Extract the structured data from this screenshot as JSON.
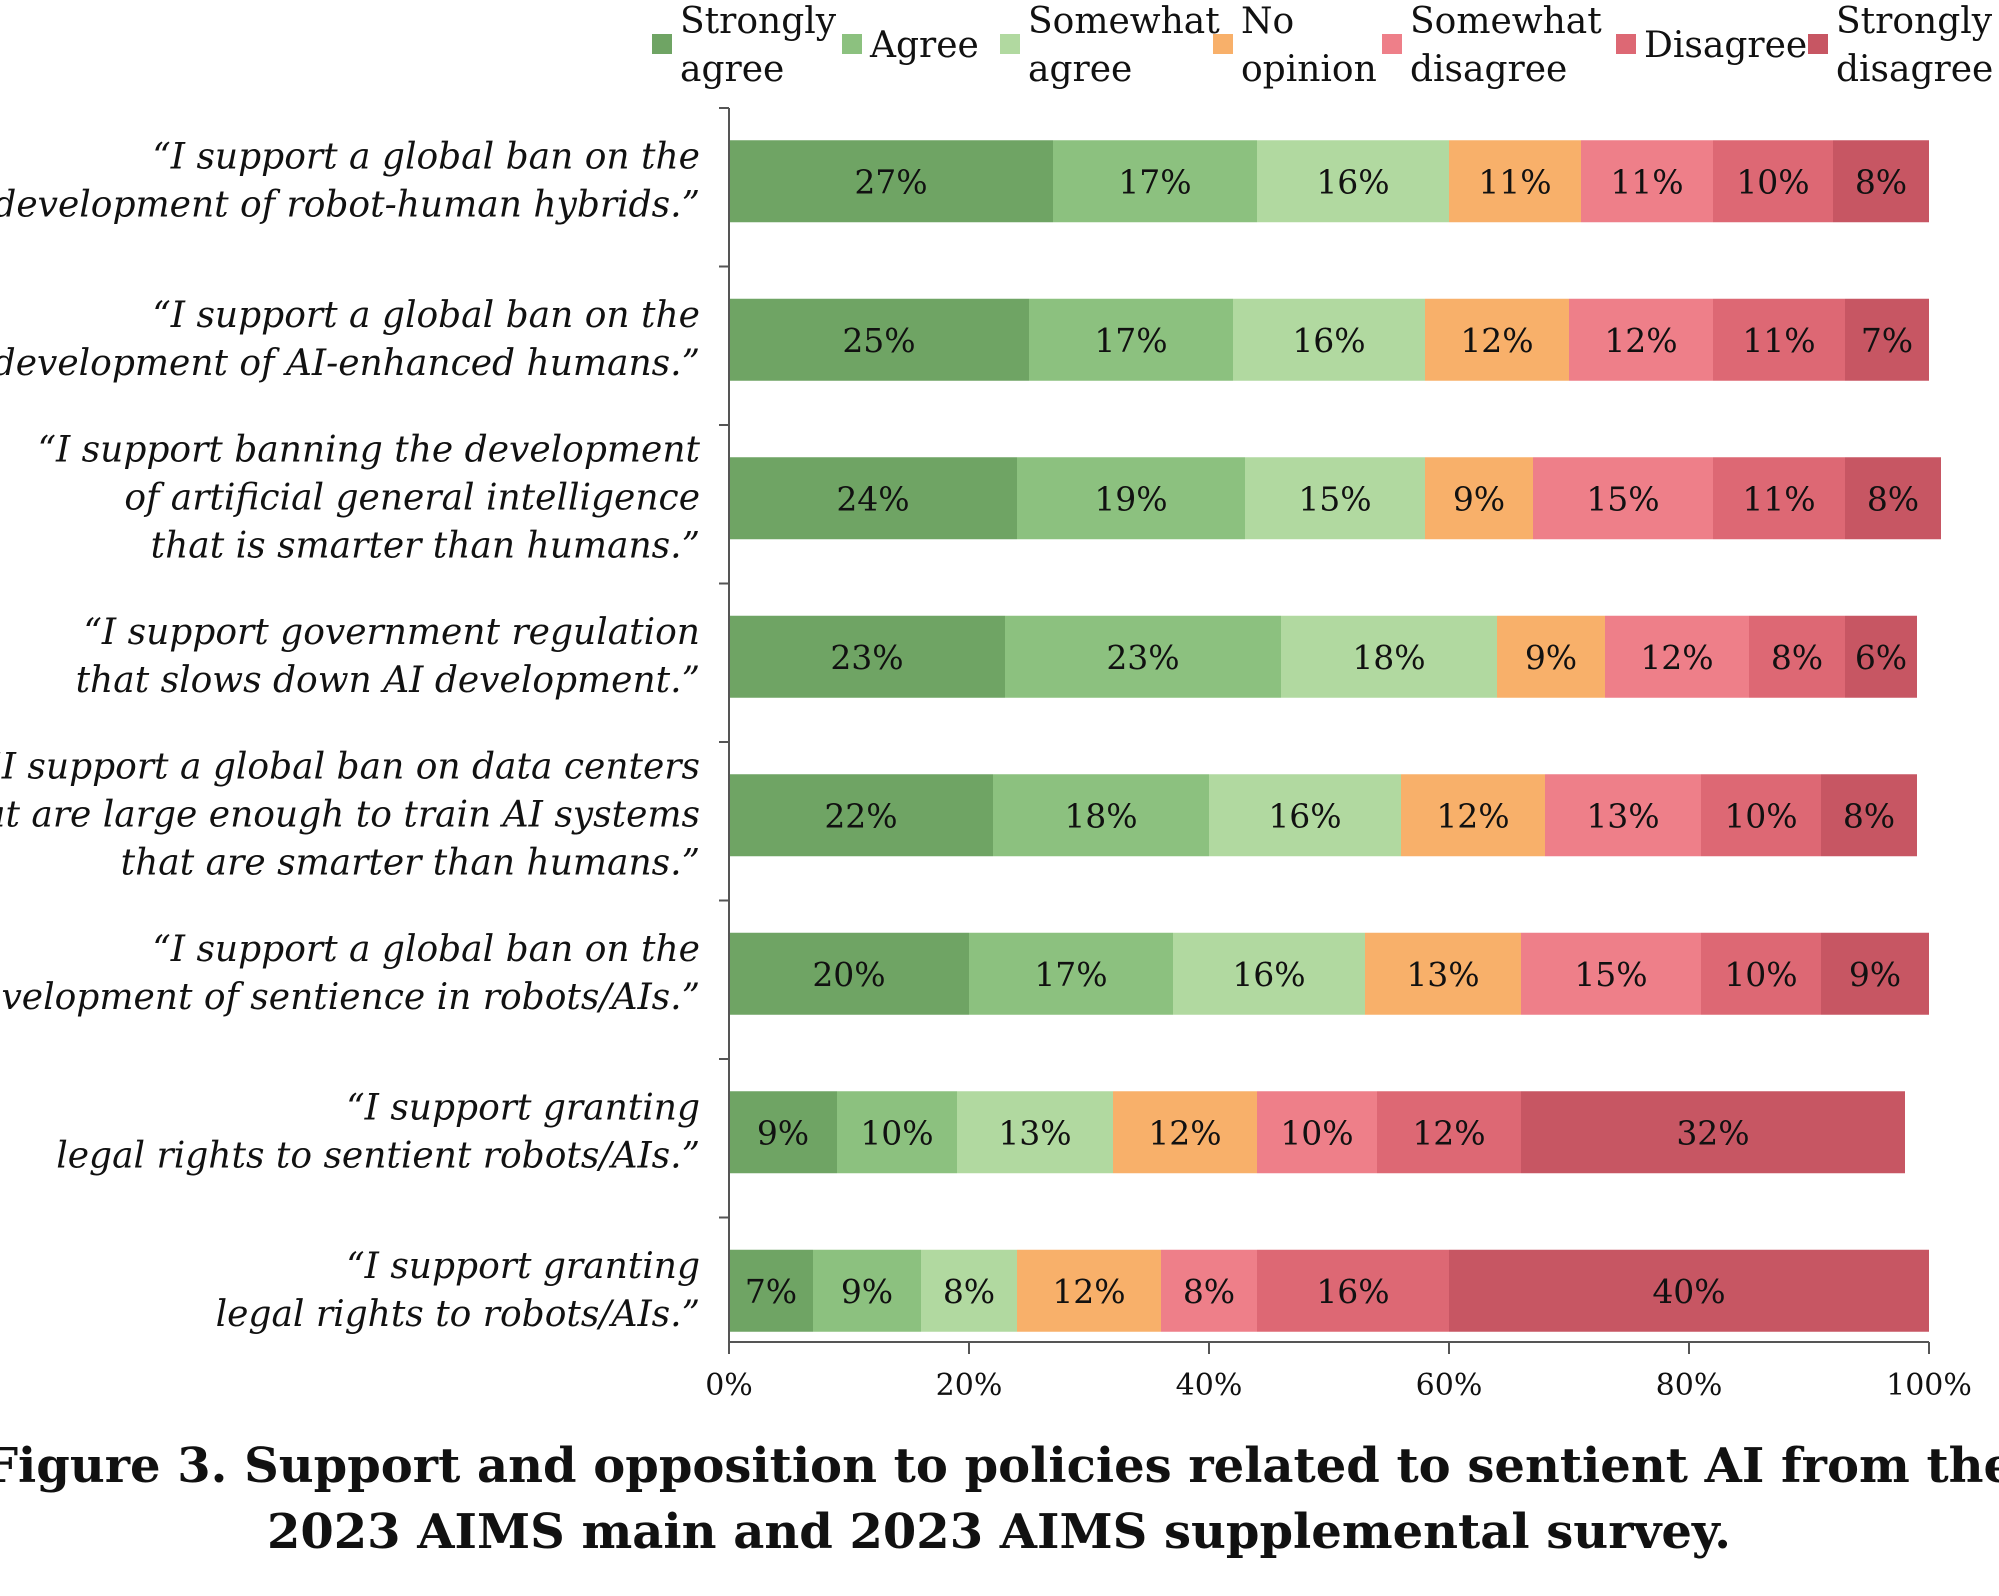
{
  "chart_data": {
    "type": "bar",
    "orientation": "horizontal",
    "stacked": true,
    "caption_lines": [
      "Figure 3. Support and opposition to policies related to sentient AI from the",
      "2023 AIMS main and 2023 AIMS supplemental survey."
    ],
    "categories": [
      [
        "“I support a global ban on the",
        "development of robot-human hybrids.”"
      ],
      [
        "“I support a global ban on the",
        "development of AI-enhanced humans.”"
      ],
      [
        "“I support banning the development",
        "of artificial general intelligence",
        "that is smarter than humans.”"
      ],
      [
        "“I support government regulation",
        "that slows down AI development.”"
      ],
      [
        "“I support a global ban on data centers",
        "that are large enough to train AI systems",
        "that are smarter than humans.”"
      ],
      [
        "“I support a global ban on the",
        "development of sentience in robots/AIs.”"
      ],
      [
        "“I support granting",
        "legal rights to sentient robots/AIs.”"
      ],
      [
        "“I support granting",
        "legal rights to robots/AIs.”"
      ]
    ],
    "series": [
      {
        "name": "Strongly agree",
        "legend_lines": [
          "Strongly",
          "agree"
        ],
        "color": "#6fa464",
        "values": [
          27,
          25,
          24,
          23,
          22,
          20,
          9,
          7
        ],
        "labels": [
          "27%",
          "25%",
          "24%",
          "23%",
          "22%",
          "20%",
          "9%",
          "7%"
        ]
      },
      {
        "name": "Agree",
        "legend_lines": [
          "Agree"
        ],
        "color": "#8cc17f",
        "values": [
          17,
          17,
          19,
          23,
          18,
          17,
          10,
          9
        ],
        "labels": [
          "17%",
          "17%",
          "19%",
          "23%",
          "18%",
          "17%",
          "10%",
          "9%"
        ]
      },
      {
        "name": "Somewhat agree",
        "legend_lines": [
          "Somewhat",
          "agree"
        ],
        "color": "#b1d9a0",
        "values": [
          16,
          16,
          15,
          18,
          16,
          16,
          13,
          8
        ],
        "labels": [
          "16%",
          "16%",
          "15%",
          "18%",
          "16%",
          "16%",
          "13%",
          "8%"
        ]
      },
      {
        "name": "No opinion",
        "legend_lines": [
          "No",
          "opinion"
        ],
        "color": "#f8b06a",
        "values": [
          11,
          12,
          9,
          9,
          12,
          13,
          12,
          12
        ],
        "labels": [
          "11%",
          "12%",
          "9%",
          "9%",
          "12%",
          "13%",
          "12%",
          "12%"
        ]
      },
      {
        "name": "Somewhat disagree",
        "legend_lines": [
          "Somewhat",
          "disagree"
        ],
        "color": "#ee7f89",
        "values": [
          11,
          12,
          15,
          12,
          13,
          15,
          10,
          8
        ],
        "labels": [
          "11%",
          "12%",
          "15%",
          "12%",
          "13%",
          "15%",
          "10%",
          "8%"
        ]
      },
      {
        "name": "Disagree",
        "legend_lines": [
          "Disagree"
        ],
        "color": "#dd6874",
        "values": [
          10,
          11,
          11,
          8,
          10,
          10,
          12,
          16
        ],
        "labels": [
          "10%",
          "11%",
          "11%",
          "8%",
          "10%",
          "10%",
          "12%",
          "16%"
        ]
      },
      {
        "name": "Strongly disagree",
        "legend_lines": [
          "Strongly",
          "disagree"
        ],
        "color": "#c75663",
        "values": [
          8,
          7,
          8,
          6,
          8,
          9,
          32,
          40
        ],
        "labels": [
          "8%",
          "7%",
          "8%",
          "6%",
          "8%",
          "9%",
          "32%",
          "40%"
        ]
      }
    ],
    "xlim": [
      0,
      100
    ],
    "xticks": [
      0,
      20,
      40,
      60,
      80,
      100
    ],
    "xtick_labels": [
      "0%",
      "20%",
      "40%",
      "60%",
      "80%",
      "100%"
    ],
    "legend_position": "top",
    "grid": false
  }
}
